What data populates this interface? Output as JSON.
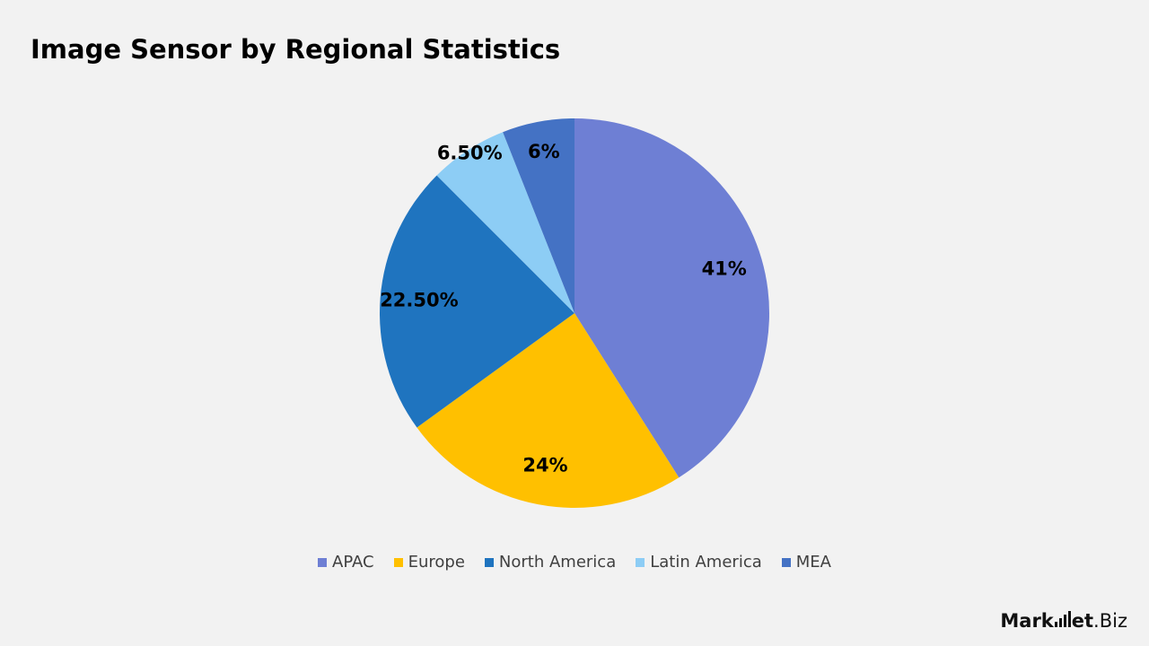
{
  "title": "Image Sensor by Regional Statistics",
  "logo": {
    "part1": "Mark",
    "part2": "et",
    "part3": ".Biz"
  },
  "chart_data": {
    "type": "pie",
    "title": "Image Sensor by Regional Statistics",
    "legend_position": "bottom",
    "start_angle_deg": 0,
    "direction": "clockwise",
    "slices": [
      {
        "name": "APAC",
        "value": 41,
        "label": "41%",
        "color": "#6e7fd4"
      },
      {
        "name": "Europe",
        "value": 24,
        "label": "24%",
        "color": "#ffc000"
      },
      {
        "name": "North America",
        "value": 22.5,
        "label": "22.50%",
        "color": "#1f74bf"
      },
      {
        "name": "Latin America",
        "value": 6.5,
        "label": "6.50%",
        "color": "#8dcdf5"
      },
      {
        "name": "MEA",
        "value": 6,
        "label": "6%",
        "color": "#4472c4"
      }
    ]
  }
}
